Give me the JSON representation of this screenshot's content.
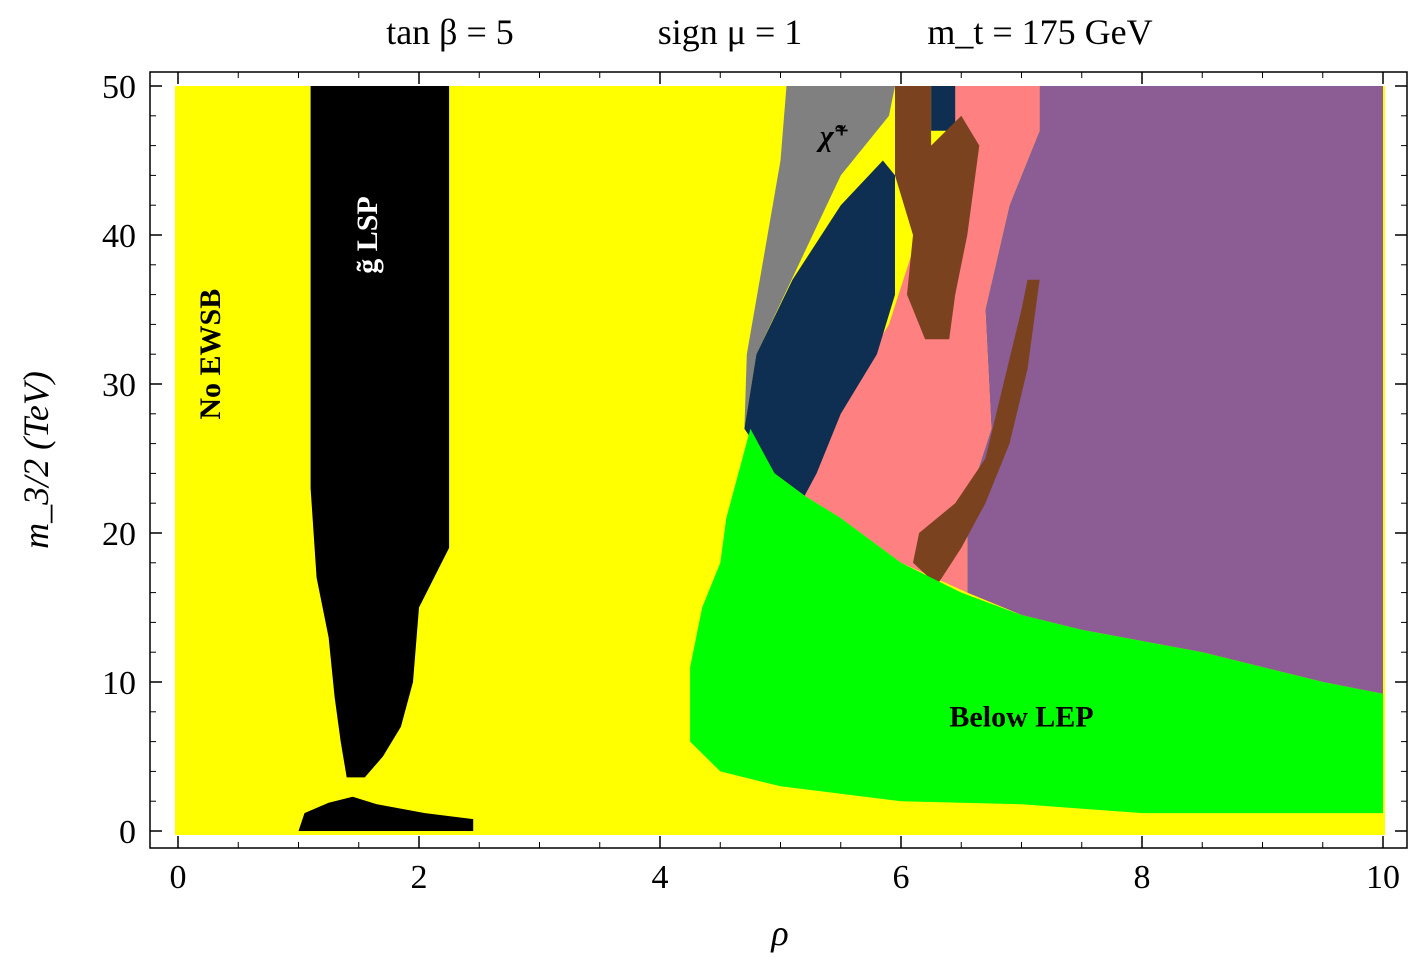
{
  "title_parts": [
    "tan β = 5",
    "sign μ = 1",
    "m_t = 175 GeV"
  ],
  "chart_data": {
    "type": "heatmap",
    "title": "tan β = 5    sign μ = 1    m_t = 175 GeV",
    "xlabel": "ρ",
    "ylabel": "m_3/2 (TeV)",
    "xlim": [
      0,
      10
    ],
    "ylim": [
      0,
      50
    ],
    "xticks": [
      0,
      2,
      4,
      6,
      8,
      10
    ],
    "yticks": [
      0,
      10,
      20,
      30,
      40,
      50
    ],
    "grid": false,
    "colors": {
      "No EWSB": "#ffff00",
      "gluino LSP": "#000000",
      "Below LEP": "#00ff00",
      "chargino": "#808080",
      "region_navy": "#0f2f52",
      "region_brown": "#7b4220",
      "region_pink": "#ff8080",
      "region_purple": "#8c5c94"
    },
    "regions": [
      {
        "id": "gluino-lsp",
        "color": "#000000",
        "boundary": [
          [
            1.1,
            50
          ],
          [
            2.25,
            50
          ],
          [
            2.25,
            19
          ],
          [
            2.0,
            15
          ],
          [
            1.95,
            10
          ],
          [
            1.85,
            7
          ],
          [
            1.7,
            5
          ],
          [
            1.55,
            3.6
          ],
          [
            1.4,
            3.6
          ],
          [
            1.35,
            6
          ],
          [
            1.3,
            9
          ],
          [
            1.25,
            13
          ],
          [
            1.15,
            17
          ],
          [
            1.1,
            23
          ]
        ]
      },
      {
        "id": "gluino-lsp-bottom",
        "color": "#000000",
        "boundary": [
          [
            1.0,
            0
          ],
          [
            2.45,
            0
          ],
          [
            2.45,
            0.8
          ],
          [
            2.05,
            1.2
          ],
          [
            1.65,
            1.8
          ],
          [
            1.45,
            2.3
          ],
          [
            1.25,
            1.9
          ],
          [
            1.05,
            1.2
          ]
        ]
      },
      {
        "id": "chargino",
        "color": "#808080",
        "boundary": [
          [
            5.05,
            50
          ],
          [
            5.95,
            50
          ],
          [
            5.9,
            48
          ],
          [
            5.5,
            44
          ],
          [
            4.8,
            32
          ],
          [
            4.7,
            27
          ],
          [
            4.72,
            32
          ],
          [
            4.85,
            38
          ],
          [
            5.0,
            45
          ]
        ]
      },
      {
        "id": "purple",
        "color": "#8c5c94",
        "boundary": [
          [
            7.15,
            50
          ],
          [
            10,
            50
          ],
          [
            10,
            9.2
          ],
          [
            9.5,
            10
          ],
          [
            8.5,
            12
          ],
          [
            7.5,
            13.5
          ],
          [
            7.0,
            14.5
          ],
          [
            6.55,
            16
          ],
          [
            6.55,
            22
          ],
          [
            6.75,
            27
          ],
          [
            6.7,
            35
          ],
          [
            6.9,
            42
          ],
          [
            7.15,
            47
          ]
        ]
      },
      {
        "id": "pink",
        "color": "#ff8080",
        "boundary": [
          [
            6.35,
            50
          ],
          [
            7.15,
            50
          ],
          [
            7.15,
            47
          ],
          [
            6.9,
            42
          ],
          [
            6.7,
            35
          ],
          [
            6.75,
            27
          ],
          [
            6.55,
            22
          ],
          [
            6.55,
            16
          ],
          [
            6.0,
            18
          ],
          [
            5.5,
            21
          ],
          [
            5.2,
            22.5
          ],
          [
            5.3,
            26
          ],
          [
            5.6,
            30
          ],
          [
            5.9,
            34
          ],
          [
            6.1,
            39
          ],
          [
            6.3,
            44
          ],
          [
            6.4,
            48
          ]
        ]
      },
      {
        "id": "navy",
        "color": "#0f2f52",
        "boundary": [
          [
            5.95,
            44
          ],
          [
            5.95,
            36
          ],
          [
            5.8,
            32
          ],
          [
            5.5,
            28
          ],
          [
            5.3,
            24
          ],
          [
            5.2,
            22.5
          ],
          [
            4.95,
            24
          ],
          [
            4.7,
            27
          ],
          [
            4.8,
            32
          ],
          [
            5.1,
            37
          ],
          [
            5.5,
            42
          ],
          [
            5.85,
            45
          ]
        ]
      },
      {
        "id": "navy-top",
        "color": "#0f2f52",
        "boundary": [
          [
            6.25,
            50
          ],
          [
            6.45,
            50
          ],
          [
            6.45,
            47
          ],
          [
            6.25,
            47
          ]
        ]
      },
      {
        "id": "brown-band",
        "color": "#7b4220",
        "boundary": [
          [
            5.95,
            50
          ],
          [
            6.25,
            50
          ],
          [
            6.25,
            46
          ],
          [
            6.5,
            48
          ],
          [
            6.65,
            46
          ],
          [
            6.55,
            40
          ],
          [
            6.45,
            36
          ],
          [
            6.4,
            33
          ],
          [
            6.2,
            33
          ],
          [
            6.05,
            36
          ],
          [
            6.1,
            40
          ],
          [
            5.95,
            44
          ]
        ]
      },
      {
        "id": "brown-strip",
        "color": "#7b4220",
        "boundary": [
          [
            7.15,
            37
          ],
          [
            7.05,
            31
          ],
          [
            6.9,
            26
          ],
          [
            6.7,
            22
          ],
          [
            6.5,
            19
          ],
          [
            6.3,
            16.5
          ],
          [
            6.1,
            18
          ],
          [
            6.15,
            20
          ],
          [
            6.45,
            22
          ],
          [
            6.7,
            25
          ],
          [
            6.85,
            30
          ],
          [
            7.0,
            35
          ],
          [
            7.05,
            37
          ]
        ]
      },
      {
        "id": "below-lep",
        "color": "#00ff00",
        "boundary": [
          [
            4.75,
            27
          ],
          [
            4.55,
            21
          ],
          [
            4.5,
            18
          ],
          [
            4.35,
            15
          ],
          [
            4.25,
            11
          ],
          [
            4.25,
            6
          ],
          [
            4.5,
            4
          ],
          [
            5.0,
            3
          ],
          [
            6.0,
            2
          ],
          [
            7.0,
            1.8
          ],
          [
            8.0,
            1.2
          ],
          [
            10,
            1.2
          ],
          [
            10,
            9.2
          ],
          [
            9.5,
            10
          ],
          [
            8.5,
            12
          ],
          [
            7.5,
            13.5
          ],
          [
            7.0,
            14.5
          ],
          [
            6.5,
            16
          ],
          [
            6.0,
            18
          ],
          [
            5.5,
            21
          ],
          [
            5.2,
            22.5
          ],
          [
            4.95,
            24
          ]
        ]
      }
    ],
    "annotations": [
      {
        "text": "No EWSB",
        "x": 0.35,
        "y": 32,
        "rotate": -90,
        "color": "#000000"
      },
      {
        "text": "g̃ LSP",
        "x": 1.65,
        "y": 40,
        "rotate": -90,
        "color": "#ffffff"
      },
      {
        "text": "χ̃⁺",
        "x": 5.45,
        "y": 46,
        "rotate": 0,
        "color": "#000000"
      },
      {
        "text": "Below LEP",
        "x": 7.0,
        "y": 7,
        "rotate": 0,
        "color": "#000000"
      }
    ]
  }
}
